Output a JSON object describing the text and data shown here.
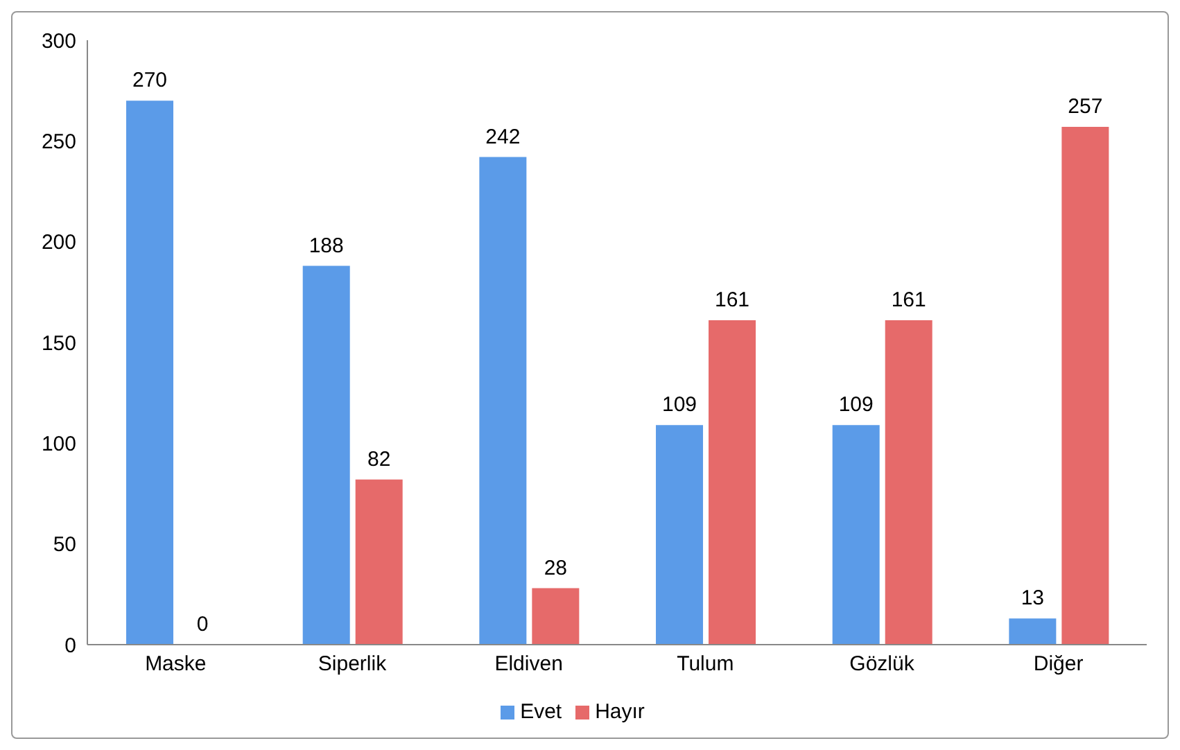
{
  "chart_data": {
    "type": "bar",
    "categories": [
      "Maske",
      "Siperlik",
      "Eldiven",
      "Tulum",
      "Gözlük",
      "Diğer"
    ],
    "series": [
      {
        "name": "Evet",
        "color": "#5b9be8",
        "values": [
          270,
          188,
          242,
          109,
          109,
          13
        ]
      },
      {
        "name": "Hayır",
        "color": "#e66a6a",
        "values": [
          0,
          82,
          28,
          161,
          161,
          257
        ]
      }
    ],
    "ylim": [
      0,
      300
    ],
    "yticks": [
      0,
      50,
      100,
      150,
      200,
      250,
      300
    ],
    "grid": false,
    "legend": "bottom",
    "data_labels": true
  }
}
